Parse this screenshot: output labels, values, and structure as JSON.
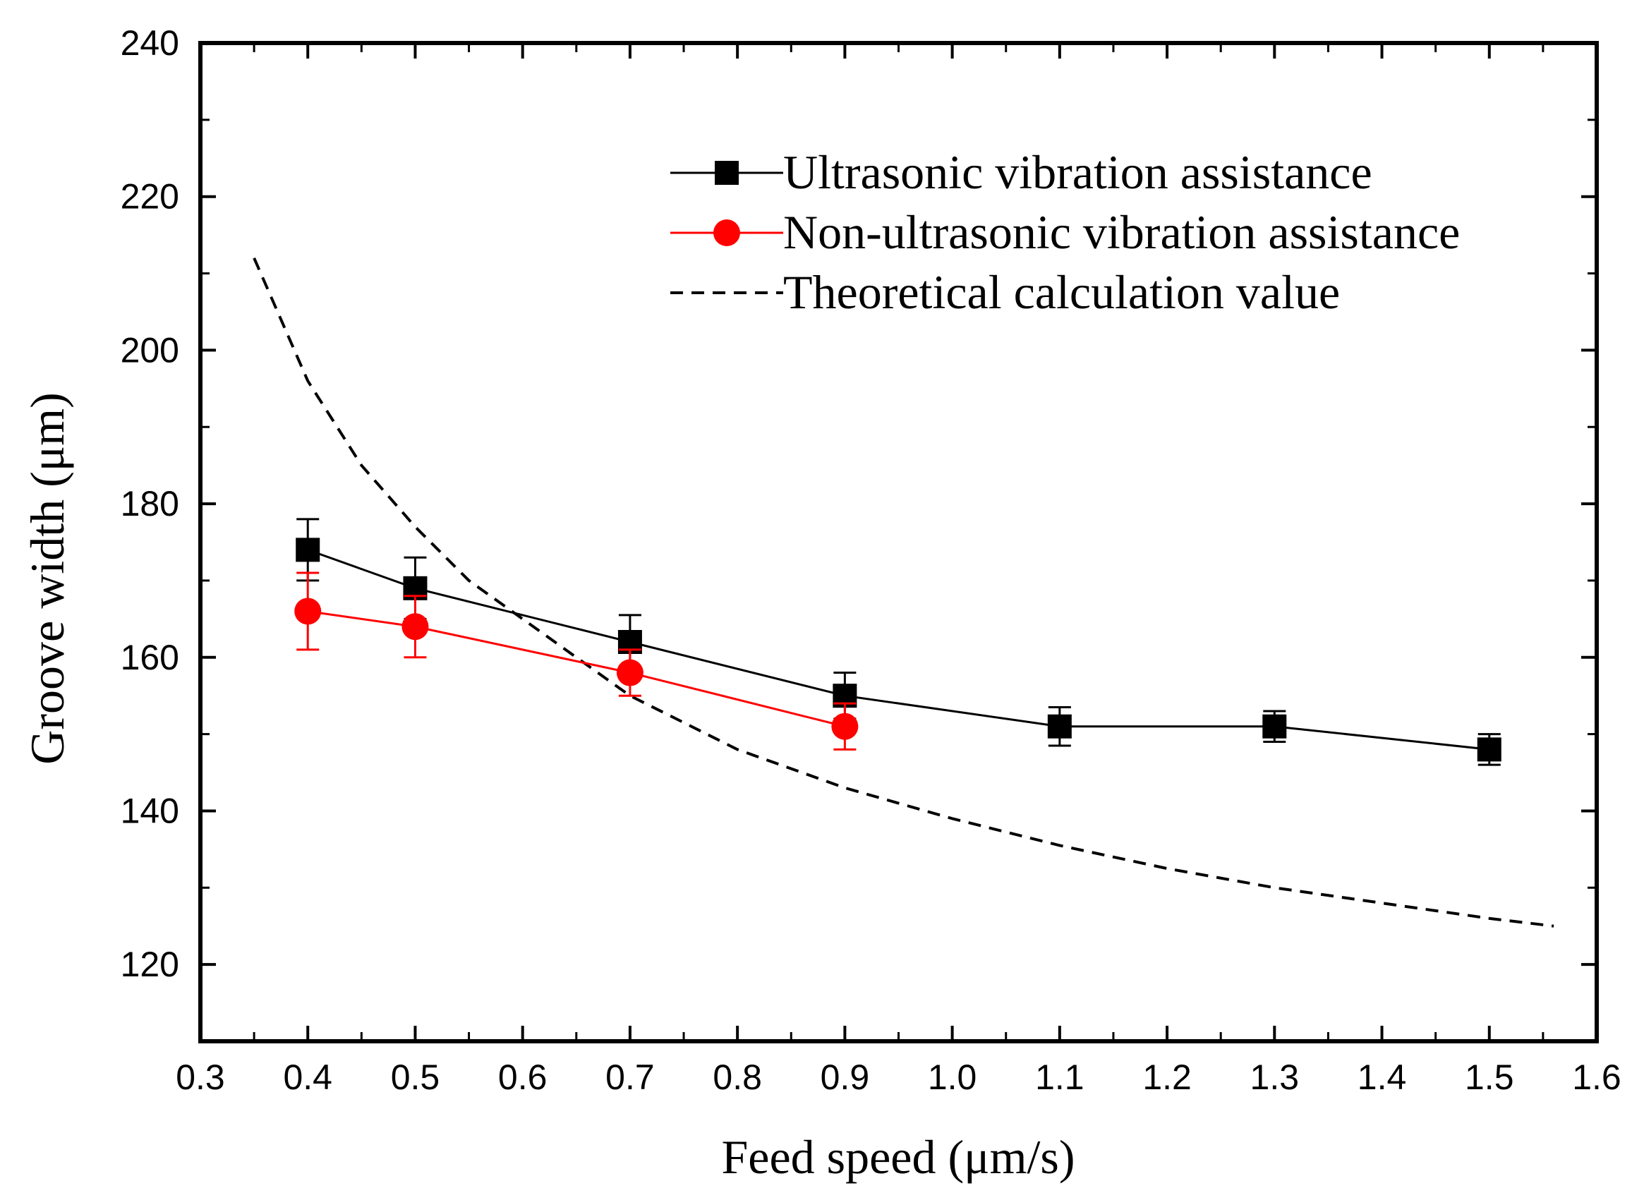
{
  "chart_data": {
    "type": "line",
    "title": "",
    "xlabel": "Feed speed (μm/s)",
    "ylabel": "Groove width (μm)",
    "xlim": [
      0.3,
      1.6
    ],
    "ylim": [
      110,
      240
    ],
    "x_ticks": [
      "0.3",
      "0.4",
      "0.5",
      "0.6",
      "0.7",
      "0.8",
      "0.9",
      "1.0",
      "1.1",
      "1.2",
      "1.3",
      "1.4",
      "1.5",
      "1.6"
    ],
    "y_ticks": [
      "120",
      "140",
      "160",
      "180",
      "200",
      "220",
      "240"
    ],
    "legend_position": "top-right",
    "series": [
      {
        "name": "Ultrasonic vibration assistance",
        "color": "#000000",
        "marker": "square",
        "x": [
          0.4,
          0.5,
          0.7,
          0.9,
          1.1,
          1.3,
          1.5
        ],
        "y": [
          174,
          169,
          162,
          155,
          151,
          151,
          148
        ],
        "err": [
          4,
          4,
          3.5,
          3,
          2.5,
          2,
          2
        ]
      },
      {
        "name": "Non-ultrasonic vibration assistance",
        "color": "#ff0000",
        "marker": "circle",
        "x": [
          0.4,
          0.5,
          0.7,
          0.9
        ],
        "y": [
          166,
          164,
          158,
          151
        ],
        "err": [
          5,
          4,
          3,
          3
        ]
      },
      {
        "name": "Theoretical calculation value",
        "color": "#000000",
        "style": "dashed",
        "x": [
          0.35,
          0.4,
          0.45,
          0.5,
          0.55,
          0.6,
          0.65,
          0.7,
          0.8,
          0.9,
          1.0,
          1.1,
          1.2,
          1.3,
          1.4,
          1.5,
          1.56
        ],
        "y": [
          212,
          196,
          185,
          177,
          170,
          165,
          160,
          155,
          148,
          143,
          139,
          135.5,
          132.5,
          130,
          128,
          126,
          125
        ]
      }
    ]
  }
}
